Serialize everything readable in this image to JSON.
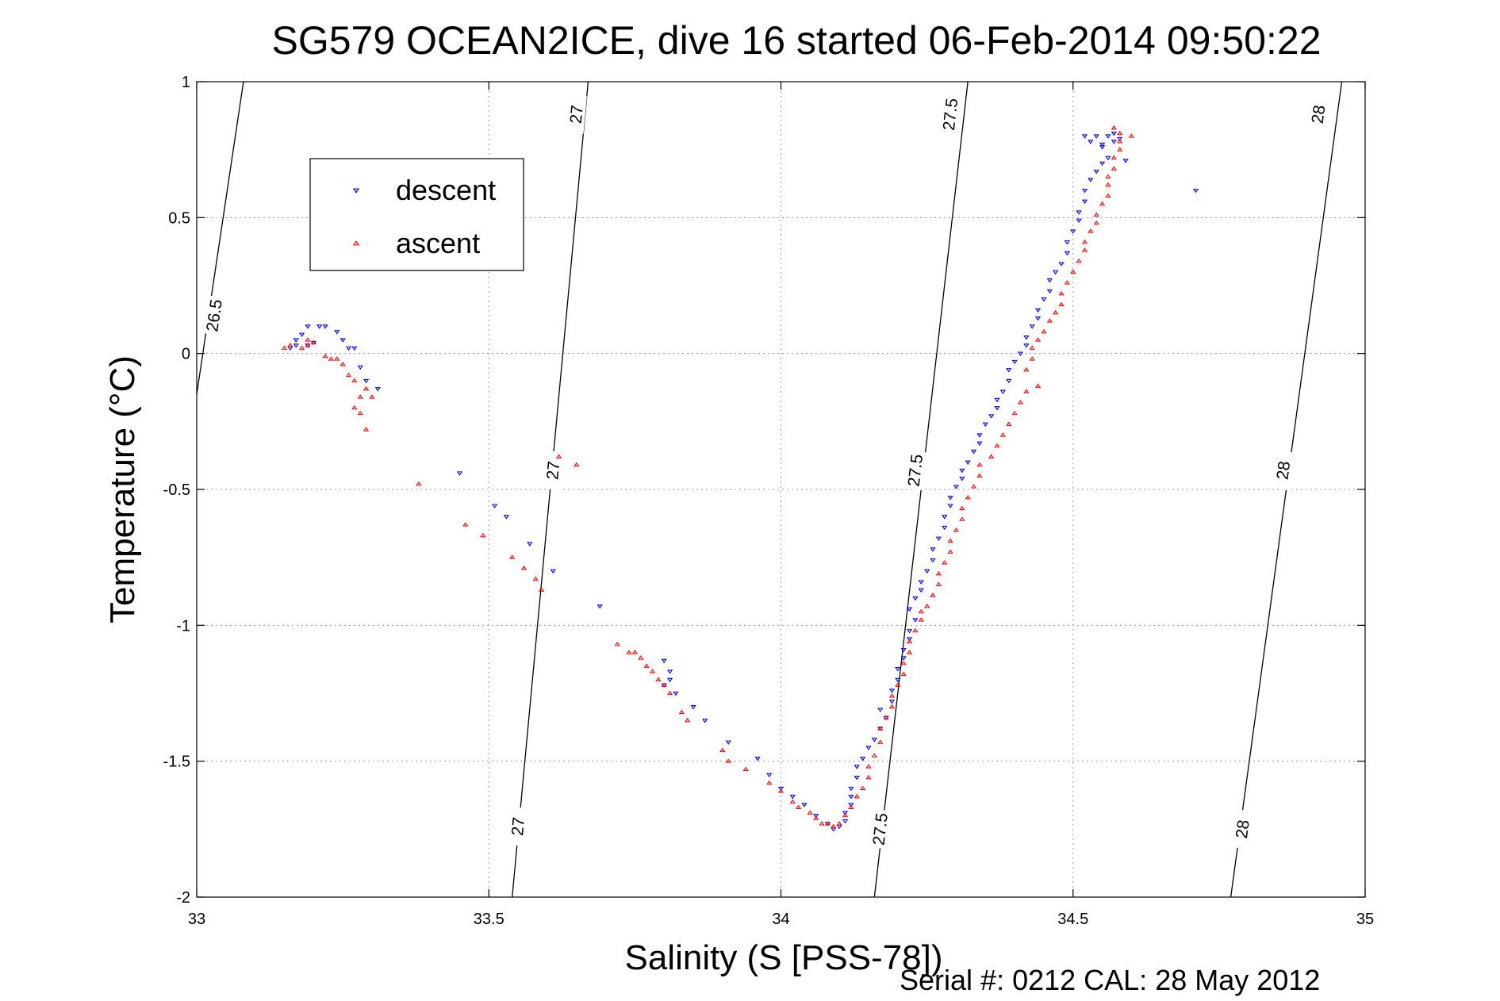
{
  "chart_data": {
    "type": "scatter",
    "title": "SG579 OCEAN2ICE, dive 16 started 06-Feb-2014 09:50:22",
    "xlabel": "Salinity (S [PSS-78])",
    "ylabel": "Temperature (°C)",
    "footer": "Serial #: 0212  CAL: 28 May 2012",
    "xlim": [
      33,
      35
    ],
    "ylim": [
      -2,
      1
    ],
    "x_ticks": [
      33,
      33.5,
      34,
      34.5,
      35
    ],
    "x_tick_labels": [
      "33",
      "33.5",
      "34",
      "34.5",
      "35"
    ],
    "y_ticks": [
      -2,
      -1.5,
      -1,
      -0.5,
      0,
      0.5,
      1
    ],
    "y_tick_labels": [
      "-2",
      "-1.5",
      "-1",
      "-0.5",
      "0",
      "0.5",
      "1"
    ],
    "grid": true,
    "legend_position": "top-left",
    "series": [
      {
        "name": "descent",
        "color": "#0000ff",
        "marker": "triangle-down",
        "points": [
          [
            33.16,
            0.02
          ],
          [
            33.17,
            0.03
          ],
          [
            33.17,
            0.05
          ],
          [
            33.18,
            0.07
          ],
          [
            33.19,
            0.03
          ],
          [
            33.2,
            0.04
          ],
          [
            33.19,
            0.1
          ],
          [
            33.21,
            0.1
          ],
          [
            33.22,
            0.1
          ],
          [
            33.24,
            0.08
          ],
          [
            33.25,
            0.05
          ],
          [
            33.26,
            0.02
          ],
          [
            33.27,
            0.02
          ],
          [
            33.28,
            -0.05
          ],
          [
            33.29,
            -0.1
          ],
          [
            33.31,
            -0.13
          ],
          [
            33.45,
            -0.44
          ],
          [
            33.51,
            -0.56
          ],
          [
            33.53,
            -0.6
          ],
          [
            33.57,
            -0.7
          ],
          [
            33.61,
            -0.8
          ],
          [
            33.69,
            -0.93
          ],
          [
            33.8,
            -1.13
          ],
          [
            33.81,
            -1.17
          ],
          [
            33.81,
            -1.2
          ],
          [
            33.8,
            -1.22
          ],
          [
            33.82,
            -1.25
          ],
          [
            33.85,
            -1.3
          ],
          [
            33.87,
            -1.35
          ],
          [
            33.91,
            -1.43
          ],
          [
            33.96,
            -1.49
          ],
          [
            33.98,
            -1.55
          ],
          [
            34.0,
            -1.6
          ],
          [
            34.02,
            -1.63
          ],
          [
            34.04,
            -1.66
          ],
          [
            34.06,
            -1.7
          ],
          [
            34.08,
            -1.73
          ],
          [
            34.09,
            -1.75
          ],
          [
            34.1,
            -1.74
          ],
          [
            34.11,
            -1.72
          ],
          [
            34.11,
            -1.69
          ],
          [
            34.12,
            -1.66
          ],
          [
            34.12,
            -1.63
          ],
          [
            34.12,
            -1.6
          ],
          [
            34.13,
            -1.56
          ],
          [
            34.13,
            -1.52
          ],
          [
            34.14,
            -1.49
          ],
          [
            34.15,
            -1.45
          ],
          [
            34.16,
            -1.42
          ],
          [
            34.17,
            -1.38
          ],
          [
            34.18,
            -1.34
          ],
          [
            34.17,
            -1.31
          ],
          [
            34.19,
            -1.28
          ],
          [
            34.19,
            -1.24
          ],
          [
            34.2,
            -1.2
          ],
          [
            34.2,
            -1.16
          ],
          [
            34.21,
            -1.12
          ],
          [
            34.21,
            -1.09
          ],
          [
            34.22,
            -1.05
          ],
          [
            34.22,
            -1.02
          ],
          [
            34.23,
            -0.98
          ],
          [
            34.22,
            -0.94
          ],
          [
            34.23,
            -0.9
          ],
          [
            34.24,
            -0.87
          ],
          [
            34.24,
            -0.84
          ],
          [
            34.25,
            -0.8
          ],
          [
            34.26,
            -0.76
          ],
          [
            34.26,
            -0.72
          ],
          [
            34.27,
            -0.68
          ],
          [
            34.28,
            -0.64
          ],
          [
            34.28,
            -0.6
          ],
          [
            34.29,
            -0.56
          ],
          [
            34.29,
            -0.53
          ],
          [
            34.3,
            -0.49
          ],
          [
            34.31,
            -0.46
          ],
          [
            34.31,
            -0.43
          ],
          [
            34.32,
            -0.4
          ],
          [
            34.33,
            -0.36
          ],
          [
            34.34,
            -0.33
          ],
          [
            34.34,
            -0.3
          ],
          [
            34.35,
            -0.26
          ],
          [
            34.36,
            -0.23
          ],
          [
            34.37,
            -0.2
          ],
          [
            34.37,
            -0.17
          ],
          [
            34.38,
            -0.14
          ],
          [
            34.39,
            -0.1
          ],
          [
            34.39,
            -0.06
          ],
          [
            34.4,
            -0.03
          ],
          [
            34.41,
            0.0
          ],
          [
            34.42,
            0.03
          ],
          [
            34.42,
            0.06
          ],
          [
            34.43,
            0.1
          ],
          [
            34.44,
            0.13
          ],
          [
            34.44,
            0.16
          ],
          [
            34.45,
            0.2
          ],
          [
            34.46,
            0.23
          ],
          [
            34.46,
            0.27
          ],
          [
            34.47,
            0.3
          ],
          [
            34.48,
            0.33
          ],
          [
            34.49,
            0.37
          ],
          [
            34.49,
            0.41
          ],
          [
            34.5,
            0.45
          ],
          [
            34.51,
            0.49
          ],
          [
            34.51,
            0.52
          ],
          [
            34.52,
            0.56
          ],
          [
            34.52,
            0.6
          ],
          [
            34.53,
            0.64
          ],
          [
            34.54,
            0.67
          ],
          [
            34.55,
            0.7
          ],
          [
            34.56,
            0.72
          ],
          [
            34.55,
            0.76
          ],
          [
            34.53,
            0.78
          ],
          [
            34.52,
            0.8
          ],
          [
            34.54,
            0.8
          ],
          [
            34.55,
            0.77
          ],
          [
            34.57,
            0.78
          ],
          [
            34.58,
            0.79
          ],
          [
            34.57,
            0.81
          ],
          [
            34.56,
            0.8
          ],
          [
            34.59,
            0.71
          ],
          [
            34.71,
            0.6
          ]
        ]
      },
      {
        "name": "ascent",
        "color": "#ff0000",
        "marker": "triangle-up",
        "points": [
          [
            33.15,
            0.02
          ],
          [
            33.16,
            0.03
          ],
          [
            33.18,
            0.02
          ],
          [
            33.19,
            0.03
          ],
          [
            33.19,
            0.05
          ],
          [
            33.2,
            0.04
          ],
          [
            33.22,
            -0.01
          ],
          [
            33.23,
            -0.02
          ],
          [
            33.24,
            -0.02
          ],
          [
            33.25,
            -0.04
          ],
          [
            33.26,
            -0.08
          ],
          [
            33.27,
            -0.1
          ],
          [
            33.28,
            -0.16
          ],
          [
            33.27,
            -0.2
          ],
          [
            33.29,
            -0.13
          ],
          [
            33.3,
            -0.16
          ],
          [
            33.28,
            -0.22
          ],
          [
            33.29,
            -0.28
          ],
          [
            33.38,
            -0.48
          ],
          [
            33.46,
            -0.63
          ],
          [
            33.49,
            -0.67
          ],
          [
            33.54,
            -0.75
          ],
          [
            33.56,
            -0.79
          ],
          [
            33.58,
            -0.83
          ],
          [
            33.59,
            -0.87
          ],
          [
            33.62,
            -0.38
          ],
          [
            33.65,
            -0.41
          ],
          [
            33.72,
            -1.07
          ],
          [
            33.74,
            -1.1
          ],
          [
            33.75,
            -1.1
          ],
          [
            33.76,
            -1.12
          ],
          [
            33.77,
            -1.15
          ],
          [
            33.78,
            -1.17
          ],
          [
            33.79,
            -1.2
          ],
          [
            33.8,
            -1.22
          ],
          [
            33.81,
            -1.25
          ],
          [
            33.83,
            -1.32
          ],
          [
            33.84,
            -1.35
          ],
          [
            33.9,
            -1.46
          ],
          [
            33.91,
            -1.5
          ],
          [
            33.94,
            -1.53
          ],
          [
            33.98,
            -1.58
          ],
          [
            34.0,
            -1.61
          ],
          [
            34.02,
            -1.65
          ],
          [
            34.03,
            -1.67
          ],
          [
            34.05,
            -1.69
          ],
          [
            34.06,
            -1.71
          ],
          [
            34.07,
            -1.73
          ],
          [
            34.08,
            -1.73
          ],
          [
            34.09,
            -1.74
          ],
          [
            34.1,
            -1.73
          ],
          [
            34.11,
            -1.7
          ],
          [
            34.12,
            -1.67
          ],
          [
            34.13,
            -1.63
          ],
          [
            34.14,
            -1.6
          ],
          [
            34.15,
            -1.56
          ],
          [
            34.15,
            -1.52
          ],
          [
            34.16,
            -1.48
          ],
          [
            34.17,
            -1.43
          ],
          [
            34.17,
            -1.38
          ],
          [
            34.18,
            -1.34
          ],
          [
            34.19,
            -1.3
          ],
          [
            34.19,
            -1.26
          ],
          [
            34.2,
            -1.22
          ],
          [
            34.21,
            -1.18
          ],
          [
            34.21,
            -1.14
          ],
          [
            34.22,
            -1.1
          ],
          [
            34.22,
            -1.06
          ],
          [
            34.23,
            -1.02
          ],
          [
            34.24,
            -0.98
          ],
          [
            34.24,
            -0.95
          ],
          [
            34.25,
            -0.93
          ],
          [
            34.26,
            -0.89
          ],
          [
            34.27,
            -0.85
          ],
          [
            34.27,
            -0.81
          ],
          [
            34.28,
            -0.77
          ],
          [
            34.29,
            -0.73
          ],
          [
            34.29,
            -0.69
          ],
          [
            34.3,
            -0.65
          ],
          [
            34.31,
            -0.61
          ],
          [
            34.31,
            -0.57
          ],
          [
            34.32,
            -0.53
          ],
          [
            34.33,
            -0.49
          ],
          [
            34.34,
            -0.45
          ],
          [
            34.34,
            -0.41
          ],
          [
            34.36,
            -0.38
          ],
          [
            34.37,
            -0.34
          ],
          [
            34.38,
            -0.3
          ],
          [
            34.39,
            -0.26
          ],
          [
            34.4,
            -0.22
          ],
          [
            34.41,
            -0.18
          ],
          [
            34.42,
            -0.14
          ],
          [
            34.44,
            -0.12
          ],
          [
            34.42,
            -0.06
          ],
          [
            34.43,
            -0.02
          ],
          [
            34.43,
            0.02
          ],
          [
            34.44,
            0.05
          ],
          [
            34.45,
            0.08
          ],
          [
            34.46,
            0.12
          ],
          [
            34.47,
            0.15
          ],
          [
            34.48,
            0.18
          ],
          [
            34.48,
            0.22
          ],
          [
            34.49,
            0.26
          ],
          [
            34.5,
            0.3
          ],
          [
            34.51,
            0.34
          ],
          [
            34.52,
            0.38
          ],
          [
            34.52,
            0.41
          ],
          [
            34.53,
            0.45
          ],
          [
            34.54,
            0.48
          ],
          [
            34.54,
            0.51
          ],
          [
            34.55,
            0.55
          ],
          [
            34.56,
            0.58
          ],
          [
            34.56,
            0.62
          ],
          [
            34.56,
            0.65
          ],
          [
            34.57,
            0.68
          ],
          [
            34.57,
            0.72
          ],
          [
            34.58,
            0.75
          ],
          [
            34.58,
            0.78
          ],
          [
            34.58,
            0.81
          ],
          [
            34.57,
            0.83
          ],
          [
            34.6,
            0.8
          ]
        ]
      }
    ],
    "contours": [
      {
        "label": "26.5",
        "points": [
          [
            33.0,
            -0.15
          ],
          [
            33.08,
            1.0
          ]
        ],
        "label_positions": [
          [
            33.03,
            0.14
          ]
        ]
      },
      {
        "label": "27",
        "points": [
          [
            33.54,
            -2.0
          ],
          [
            33.67,
            1.0
          ]
        ],
        "label_positions": [
          [
            33.55,
            -1.74
          ],
          [
            33.61,
            -0.43
          ],
          [
            33.65,
            0.88
          ]
        ]
      },
      {
        "label": "27.5",
        "points": [
          [
            34.16,
            -2.0
          ],
          [
            34.32,
            1.0
          ]
        ],
        "label_positions": [
          [
            34.17,
            -1.75
          ],
          [
            34.23,
            -0.43
          ],
          [
            34.29,
            0.88
          ]
        ]
      },
      {
        "label": "28",
        "points": [
          [
            34.77,
            -2.0
          ],
          [
            34.96,
            1.0
          ]
        ],
        "label_positions": [
          [
            34.79,
            -1.75
          ],
          [
            34.86,
            -0.43
          ],
          [
            34.92,
            0.88
          ]
        ]
      }
    ]
  }
}
